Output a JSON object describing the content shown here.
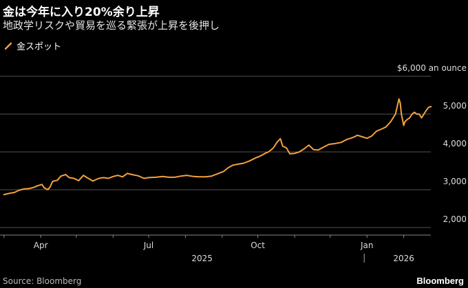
{
  "title": "金は今年に入り20%余り上昇",
  "subtitle": "地政学リスクや貿易を巡る緊張が上昇を後押し",
  "source": "Source: Bloomberg",
  "brand": "Bloomberg",
  "colors": {
    "line": "#f5a142",
    "gridline": "#555555",
    "background": "#000000",
    "text": "#dddddd"
  },
  "chart_data": {
    "type": "line",
    "title": "金は今年に入り20%余り上昇",
    "subtitle": "地政学リスクや貿易を巡る緊張が上昇を後押し",
    "legend": {
      "position": "top-left",
      "entries": [
        "金スポット"
      ]
    },
    "ylabel": "$6,000 an ounce",
    "ylim": [
      1800,
      6200
    ],
    "xlim": [
      "2025-02-28",
      "2026-02-25"
    ],
    "y_ticks": [
      {
        "value": 6000,
        "label": "$6,000 an ounce"
      },
      {
        "value": 5000,
        "label": "5,000"
      },
      {
        "value": 4000,
        "label": "4,000"
      },
      {
        "value": 3000,
        "label": "3,000"
      },
      {
        "value": 2000,
        "label": "2,000"
      }
    ],
    "x_ticks": [
      {
        "date": "2025-04-01",
        "label": "Apr"
      },
      {
        "date": "2025-07-01",
        "label": "Jul"
      },
      {
        "date": "2025-10-01",
        "label": "Oct"
      },
      {
        "date": "2026-01-01",
        "label": "Jan"
      }
    ],
    "year_labels": [
      {
        "date": "2025-08-15",
        "label": "2025"
      },
      {
        "date": "2026-02-01",
        "label": "2026"
      }
    ],
    "year_divider": "2026-01-01",
    "grid": true,
    "series": [
      {
        "name": "金スポット",
        "x": [
          "2025-03-01",
          "2025-03-05",
          "2025-03-10",
          "2025-03-14",
          "2025-03-18",
          "2025-03-22",
          "2025-03-26",
          "2025-03-30",
          "2025-04-02",
          "2025-04-04",
          "2025-04-07",
          "2025-04-09",
          "2025-04-11",
          "2025-04-15",
          "2025-04-18",
          "2025-04-22",
          "2025-04-25",
          "2025-04-29",
          "2025-05-03",
          "2025-05-07",
          "2025-05-10",
          "2025-05-15",
          "2025-05-20",
          "2025-05-24",
          "2025-05-28",
          "2025-06-01",
          "2025-06-05",
          "2025-06-09",
          "2025-06-13",
          "2025-06-17",
          "2025-06-22",
          "2025-06-27",
          "2025-07-01",
          "2025-07-07",
          "2025-07-13",
          "2025-07-18",
          "2025-07-23",
          "2025-07-28",
          "2025-08-02",
          "2025-08-08",
          "2025-08-13",
          "2025-08-18",
          "2025-08-23",
          "2025-08-28",
          "2025-09-02",
          "2025-09-06",
          "2025-09-10",
          "2025-09-15",
          "2025-09-19",
          "2025-09-24",
          "2025-09-29",
          "2025-10-03",
          "2025-10-07",
          "2025-10-10",
          "2025-10-14",
          "2025-10-17",
          "2025-10-20",
          "2025-10-22",
          "2025-10-25",
          "2025-10-28",
          "2025-11-01",
          "2025-11-05",
          "2025-11-09",
          "2025-11-13",
          "2025-11-17",
          "2025-11-21",
          "2025-11-25",
          "2025-11-30",
          "2025-12-05",
          "2025-12-10",
          "2025-12-15",
          "2025-12-20",
          "2025-12-24",
          "2025-12-28",
          "2026-01-01",
          "2026-01-05",
          "2026-01-09",
          "2026-01-13",
          "2026-01-17",
          "2026-01-21",
          "2026-01-25",
          "2026-01-28",
          "2026-01-29",
          "2026-01-30",
          "2026-02-01",
          "2026-02-02",
          "2026-02-04",
          "2026-02-06",
          "2026-02-08",
          "2026-02-10",
          "2026-02-12",
          "2026-02-14",
          "2026-02-16",
          "2026-02-18",
          "2026-02-20",
          "2026-02-22",
          "2026-02-24"
        ],
        "values": [
          2870,
          2900,
          2930,
          2990,
          3020,
          3030,
          3060,
          3110,
          3140,
          3050,
          3000,
          3080,
          3220,
          3250,
          3360,
          3400,
          3320,
          3300,
          3240,
          3380,
          3320,
          3230,
          3300,
          3320,
          3300,
          3350,
          3380,
          3340,
          3430,
          3400,
          3370,
          3300,
          3320,
          3330,
          3350,
          3330,
          3330,
          3360,
          3380,
          3350,
          3340,
          3340,
          3360,
          3420,
          3480,
          3580,
          3650,
          3680,
          3700,
          3760,
          3840,
          3890,
          3960,
          4000,
          4100,
          4250,
          4350,
          4150,
          4110,
          3950,
          3960,
          4000,
          4080,
          4180,
          4060,
          4050,
          4120,
          4200,
          4220,
          4250,
          4330,
          4380,
          4440,
          4400,
          4360,
          4420,
          4550,
          4600,
          4660,
          4800,
          5000,
          5400,
          5300,
          5000,
          4700,
          4800,
          4860,
          4900,
          5000,
          5050,
          5000,
          5000,
          4900,
          5000,
          5100,
          5180,
          5200
        ]
      }
    ]
  }
}
